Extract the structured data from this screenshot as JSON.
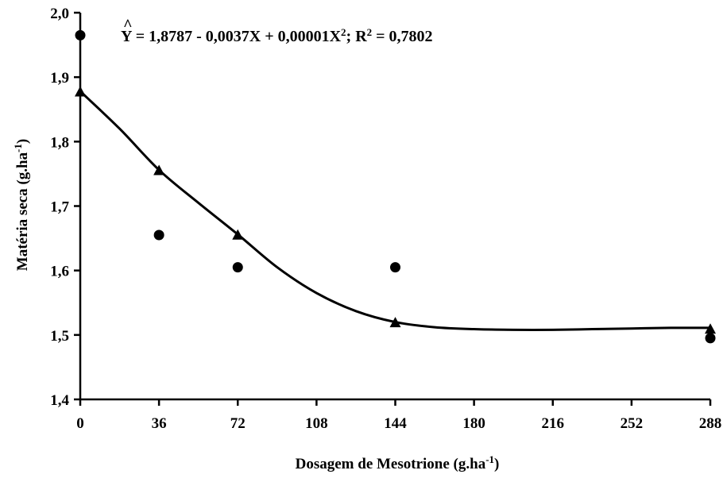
{
  "chart_data": {
    "type": "scatter",
    "xlabel": "Dosagem de Mesotrione (g.ha",
    "xlabel_sup": "-1",
    "xlabel_end": ")",
    "ylabel": "Matéria seca (g.ha",
    "ylabel_sup": "-1",
    "ylabel_end": ")",
    "xlim": [
      0,
      288
    ],
    "ylim": [
      1.4,
      2.0
    ],
    "xticks": [
      0,
      36,
      72,
      108,
      144,
      180,
      216,
      252,
      288
    ],
    "xtick_labels": [
      "0",
      "36",
      "72",
      "108",
      "144",
      "180",
      "216",
      "252",
      "288"
    ],
    "yticks": [
      1.4,
      1.5,
      1.6,
      1.7,
      1.8,
      1.9,
      2.0
    ],
    "ytick_labels": [
      "1,4",
      "1,5",
      "1,6",
      "1,7",
      "1,8",
      "1,9",
      "2,0"
    ],
    "grid": false,
    "equation": {
      "lhs": "Y",
      "hat": "^",
      "part1": " = 1,8787 - 0,0037X + 0,00001X",
      "sup1": "2",
      "part2": "; R",
      "sup2": "2",
      "part3": " = 0,7802"
    },
    "series": [
      {
        "marker": "circle",
        "x": [
          0,
          36,
          72,
          144,
          288
        ],
        "y": [
          1.965,
          1.655,
          1.605,
          1.605,
          1.495
        ]
      },
      {
        "marker": "triangle",
        "x": [
          0,
          36,
          72,
          144,
          288
        ],
        "y": [
          1.878,
          1.756,
          1.656,
          1.52,
          1.51
        ]
      }
    ],
    "fit_curve": {
      "x": [
        0,
        18,
        36,
        54,
        72,
        90,
        108,
        126,
        144,
        162,
        180,
        198,
        216,
        234,
        252,
        270,
        288
      ],
      "y": [
        1.878,
        1.82,
        1.756,
        1.705,
        1.656,
        1.605,
        1.565,
        1.537,
        1.52,
        1.512,
        1.509,
        1.508,
        1.508,
        1.509,
        1.51,
        1.511,
        1.511
      ]
    }
  }
}
